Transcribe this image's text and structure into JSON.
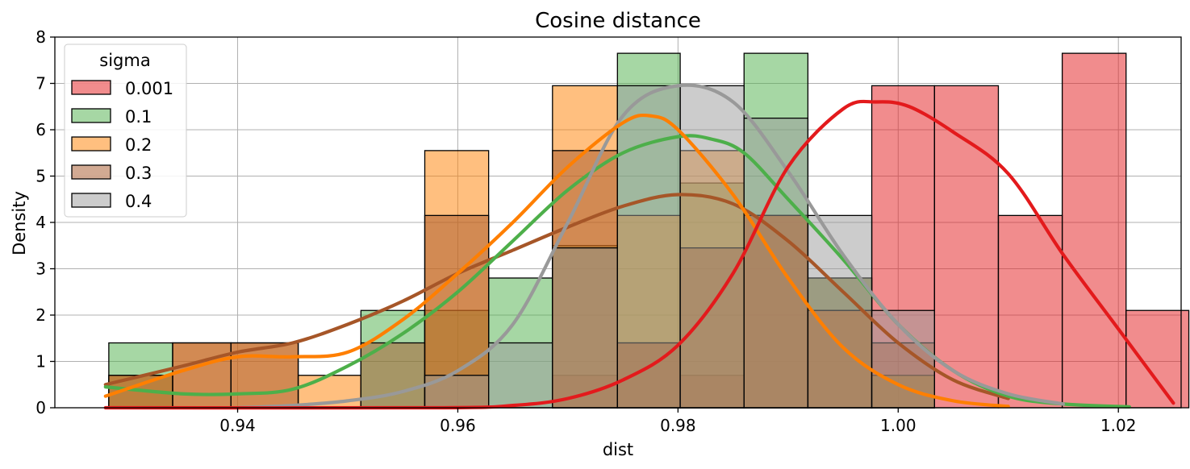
{
  "chart_data": {
    "type": "histogram",
    "title": "Cosine distance",
    "xlabel": "dist",
    "ylabel": "Density",
    "xlim": [
      0.9234,
      1.0257
    ],
    "ylim": [
      0,
      8
    ],
    "xticks": [
      0.94,
      0.96,
      0.98,
      1.0,
      1.02
    ],
    "xtick_labels": [
      "0.94",
      "0.96",
      "0.98",
      "1.00",
      "1.02"
    ],
    "yticks": [
      0,
      1,
      2,
      3,
      4,
      5,
      6,
      7,
      8
    ],
    "ytick_labels": [
      "0",
      "1",
      "2",
      "3",
      "4",
      "5",
      "6",
      "7",
      "8"
    ],
    "grid": true,
    "legend": {
      "title": "sigma",
      "placement": "upper left"
    },
    "bin_edges": [
      0.9283,
      0.9341,
      0.9394,
      0.9455,
      0.9512,
      0.957,
      0.9628,
      0.9686,
      0.9745,
      0.9802,
      0.986,
      0.9918,
      0.9976,
      1.0033,
      1.0091,
      1.0149,
      1.0207
    ],
    "series": [
      {
        "name": "0.001",
        "color": "#e31a1c",
        "fill_opacity": 0.5,
        "bins": [
          [
            0.9686,
            0.9745,
            0.7
          ],
          [
            0.9745,
            0.9802,
            1.4
          ],
          [
            0.9802,
            0.986,
            0.7
          ],
          [
            0.986,
            0.9918,
            4.15
          ],
          [
            0.9918,
            0.9976,
            2.8
          ],
          [
            0.9976,
            1.0033,
            6.95
          ],
          [
            1.0033,
            1.0091,
            6.95
          ],
          [
            1.0091,
            1.0149,
            4.15
          ],
          [
            1.0149,
            1.0207,
            7.65
          ],
          [
            1.0207,
            1.0264,
            2.1
          ]
        ],
        "kde_x": [
          0.928,
          0.958,
          0.965,
          0.97,
          0.975,
          0.98,
          0.985,
          0.99,
          0.995,
          0.998,
          1.001,
          1.005,
          1.01,
          1.015,
          1.02,
          1.025
        ],
        "kde_y": [
          0.0,
          0.0,
          0.05,
          0.2,
          0.6,
          1.35,
          2.9,
          5.2,
          6.45,
          6.6,
          6.5,
          5.95,
          5.05,
          3.3,
          1.7,
          0.1
        ]
      },
      {
        "name": "0.1",
        "color": "#4daf4a",
        "fill_opacity": 0.5,
        "bins": [
          [
            0.9283,
            0.9341,
            1.4
          ],
          [
            0.9512,
            0.957,
            2.1
          ],
          [
            0.957,
            0.9628,
            2.1
          ],
          [
            0.9628,
            0.9686,
            2.8
          ],
          [
            0.9686,
            0.9745,
            3.5
          ],
          [
            0.9745,
            0.9802,
            7.65
          ],
          [
            0.9802,
            0.986,
            4.85
          ],
          [
            0.986,
            0.9918,
            7.65
          ],
          [
            0.9918,
            0.9976,
            2.8
          ],
          [
            0.9976,
            1.0033,
            0.7
          ]
        ],
        "kde_x": [
          0.928,
          0.935,
          0.94,
          0.945,
          0.95,
          0.955,
          0.96,
          0.965,
          0.97,
          0.975,
          0.98,
          0.983,
          0.986,
          0.99,
          0.995,
          1.0,
          1.005,
          1.01,
          1.015,
          1.021
        ],
        "kde_y": [
          0.45,
          0.3,
          0.3,
          0.4,
          0.9,
          1.6,
          2.5,
          3.6,
          4.7,
          5.5,
          5.85,
          5.8,
          5.5,
          4.5,
          3.2,
          1.8,
          0.8,
          0.25,
          0.08,
          0.02
        ]
      },
      {
        "name": "0.2",
        "color": "#ff7f00",
        "fill_opacity": 0.5,
        "bins": [
          [
            0.9283,
            0.9341,
            0.7
          ],
          [
            0.9341,
            0.9394,
            1.4
          ],
          [
            0.9394,
            0.9455,
            1.4
          ],
          [
            0.9455,
            0.9512,
            0.7
          ],
          [
            0.957,
            0.9628,
            5.55
          ],
          [
            0.9686,
            0.9745,
            6.95
          ],
          [
            0.9745,
            0.9802,
            4.15
          ],
          [
            0.9802,
            0.986,
            5.55
          ],
          [
            0.986,
            0.9918,
            4.15
          ],
          [
            0.9918,
            0.9976,
            2.1
          ],
          [
            0.9976,
            1.0033,
            0.7
          ]
        ],
        "kde_x": [
          0.928,
          0.935,
          0.94,
          0.945,
          0.95,
          0.955,
          0.96,
          0.965,
          0.97,
          0.975,
          0.9775,
          0.98,
          0.985,
          0.99,
          0.995,
          1.0,
          1.005,
          1.01
        ],
        "kde_y": [
          0.25,
          0.8,
          1.1,
          1.1,
          1.2,
          1.9,
          2.9,
          4.0,
          5.2,
          6.15,
          6.3,
          6.0,
          4.6,
          2.8,
          1.3,
          0.5,
          0.15,
          0.03
        ]
      },
      {
        "name": "0.3",
        "color": "#a65628",
        "fill_opacity": 0.5,
        "bins": [
          [
            0.9283,
            0.9341,
            0.7
          ],
          [
            0.9341,
            0.9394,
            1.4
          ],
          [
            0.9394,
            0.9455,
            1.4
          ],
          [
            0.9512,
            0.957,
            1.4
          ],
          [
            0.957,
            0.9628,
            4.15
          ],
          [
            0.9686,
            0.9745,
            5.55
          ],
          [
            0.9745,
            0.9802,
            1.4
          ],
          [
            0.9802,
            0.986,
            3.45
          ],
          [
            0.986,
            0.9918,
            4.15
          ],
          [
            0.9918,
            0.9976,
            2.1
          ],
          [
            0.9976,
            1.0033,
            1.4
          ]
        ],
        "kde_x": [
          0.928,
          0.935,
          0.94,
          0.945,
          0.95,
          0.955,
          0.96,
          0.965,
          0.97,
          0.975,
          0.98,
          0.985,
          0.99,
          0.995,
          1.0,
          1.005,
          1.01
        ],
        "kde_y": [
          0.5,
          0.9,
          1.2,
          1.4,
          1.8,
          2.3,
          2.9,
          3.4,
          3.9,
          4.35,
          4.6,
          4.4,
          3.6,
          2.5,
          1.4,
          0.6,
          0.2
        ]
      },
      {
        "name": "0.4",
        "color": "#999999",
        "fill_opacity": 0.5,
        "bins": [
          [
            0.957,
            0.9628,
            0.7
          ],
          [
            0.9628,
            0.9686,
            1.4
          ],
          [
            0.9686,
            0.9745,
            3.45
          ],
          [
            0.9745,
            0.9802,
            6.95
          ],
          [
            0.9802,
            0.986,
            6.95
          ],
          [
            0.986,
            0.9918,
            6.25
          ],
          [
            0.9918,
            0.9976,
            4.15
          ],
          [
            0.9976,
            1.0033,
            2.1
          ]
        ],
        "kde_x": [
          0.94,
          0.945,
          0.95,
          0.955,
          0.96,
          0.965,
          0.97,
          0.975,
          0.98,
          0.985,
          0.99,
          0.995,
          1.0,
          1.005,
          1.01,
          1.015
        ],
        "kde_y": [
          0.0,
          0.05,
          0.15,
          0.35,
          0.8,
          1.8,
          4.0,
          6.3,
          6.95,
          6.6,
          5.1,
          3.3,
          1.8,
          0.8,
          0.3,
          0.08
        ]
      }
    ]
  }
}
